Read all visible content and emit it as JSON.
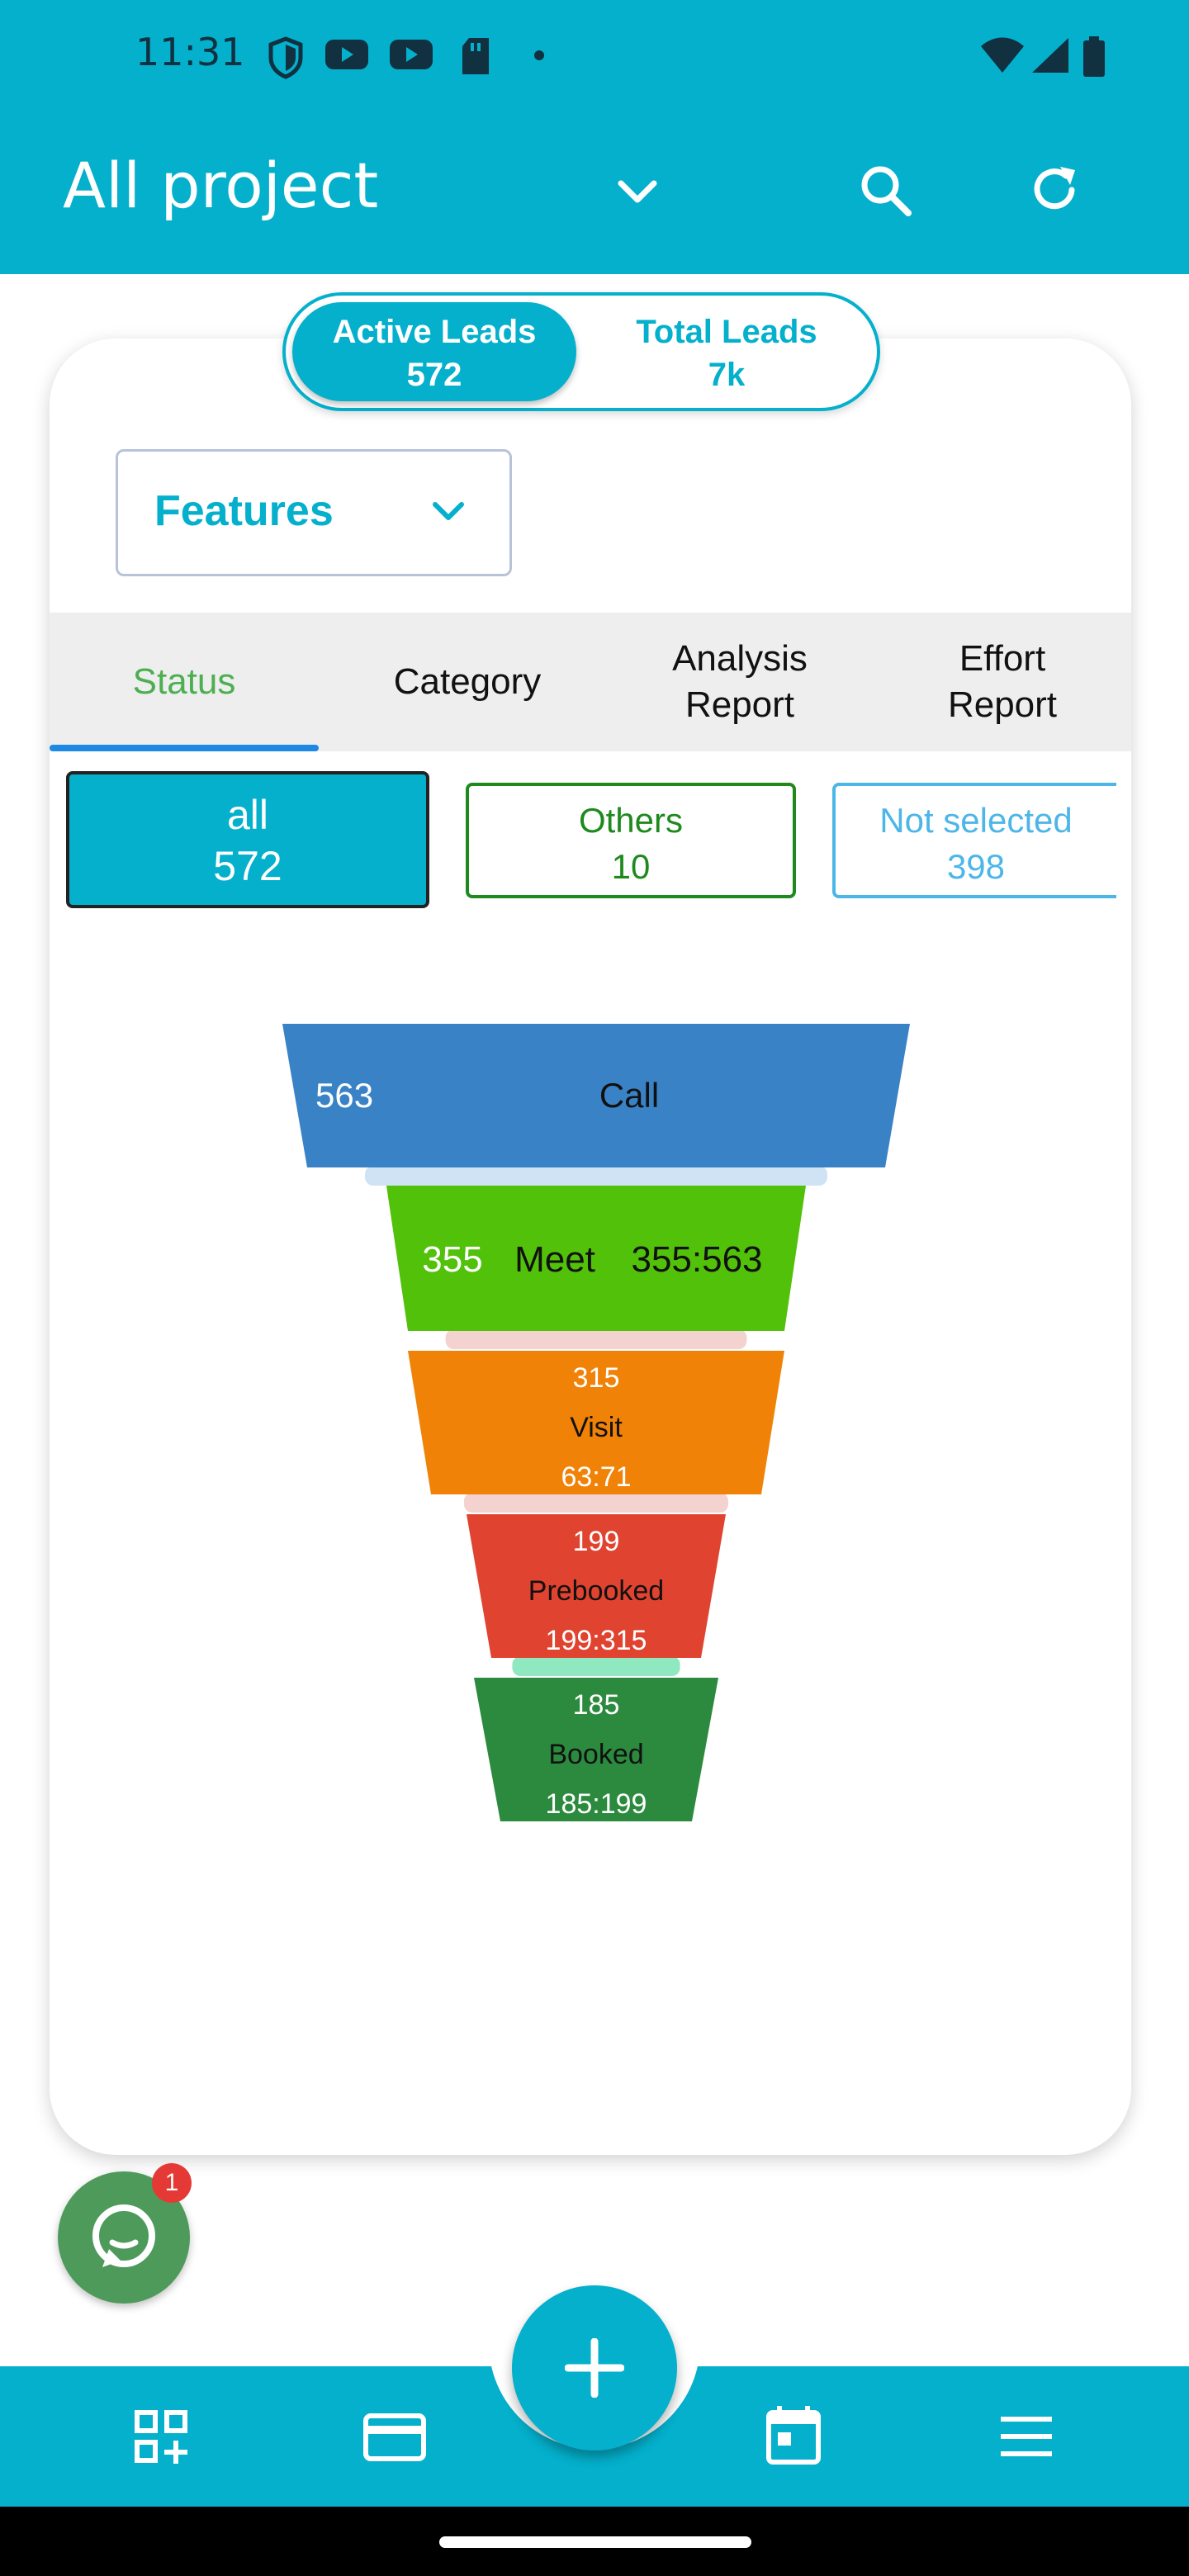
{
  "status_bar": {
    "time": "11:31",
    "icons": [
      "shield-icon",
      "youtube-icon",
      "youtube-icon",
      "sd-card-icon",
      "dot-icon",
      "wifi-icon",
      "signal-icon",
      "battery-icon"
    ]
  },
  "app_bar": {
    "title": "All project",
    "icons": [
      "chevron-down-icon",
      "search-icon",
      "refresh-icon"
    ]
  },
  "leads_toggle": {
    "active": {
      "label": "Active Leads",
      "count": "572"
    },
    "total": {
      "label": "Total Leads",
      "count": "7k"
    }
  },
  "features_dropdown": {
    "label": "Features"
  },
  "tabs": [
    {
      "label": "Status",
      "active": true
    },
    {
      "label": "Category",
      "active": false
    },
    {
      "label": "Analysis\nReport",
      "active": false
    },
    {
      "label": "Effort\nReport",
      "active": false
    }
  ],
  "status_filters": [
    {
      "label": "all",
      "count": "572"
    },
    {
      "label": "Others",
      "count": "10"
    },
    {
      "label": "Not selected",
      "count": "398"
    }
  ],
  "chart_data": {
    "type": "funnel",
    "stages": [
      {
        "name": "Call",
        "value": 563,
        "ratio": "",
        "color": "#3a82c6",
        "connector_color": "#cfe3f5"
      },
      {
        "name": "Meet",
        "value": 355,
        "ratio": "355:563",
        "color": "#52c10a",
        "connector_color": "#f3d2cf"
      },
      {
        "name": "Visit",
        "value": 315,
        "ratio": "63:71",
        "color": "#f08208",
        "connector_color": "#f3d2cf"
      },
      {
        "name": "Prebooked",
        "value": 199,
        "ratio": "199:315",
        "color": "#e0432f",
        "connector_color": "#8fe8c0"
      },
      {
        "name": "Booked",
        "value": 185,
        "ratio": "185:199",
        "color": "#2c8a3e",
        "connector_color": ""
      }
    ]
  },
  "chat": {
    "badge": "1"
  },
  "bottom_nav": {
    "icons": [
      "dashboard-add-icon",
      "card-icon",
      "add-icon",
      "calendar-icon",
      "menu-icon"
    ]
  }
}
